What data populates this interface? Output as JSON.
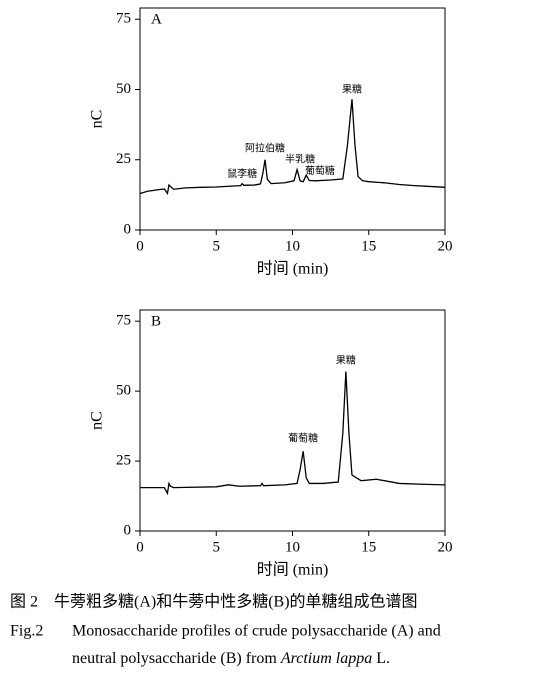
{
  "chart_data": [
    {
      "type": "line",
      "title": "A",
      "x_label": "时间 (min)",
      "y_label": "nC",
      "xlim": [
        0,
        20
      ],
      "ylim": [
        0,
        79
      ],
      "xticks": [
        0,
        5,
        10,
        15,
        20
      ],
      "yticks": [
        0,
        25,
        50,
        75
      ],
      "color": "#000000",
      "x": [
        0,
        0.5,
        1.0,
        1.6,
        1.8,
        1.9,
        2.0,
        2.2,
        3.0,
        4.0,
        5.0,
        6.0,
        6.6,
        6.7,
        6.8,
        7.5,
        7.9,
        8.05,
        8.2,
        8.35,
        8.6,
        9.5,
        10.1,
        10.3,
        10.5,
        10.7,
        10.9,
        11.1,
        11.5,
        12.5,
        13.3,
        13.6,
        13.9,
        14.1,
        14.3,
        14.6,
        15.0,
        16.0,
        17.0,
        18.0,
        19.0,
        20.0
      ],
      "values": [
        13,
        13.8,
        14.2,
        14.6,
        13,
        16,
        15.5,
        14.5,
        15,
        15.2,
        15.3,
        15.6,
        15.8,
        16.5,
        15.9,
        16,
        16.4,
        20,
        25,
        18,
        16.5,
        16.8,
        17.5,
        21.5,
        17.5,
        17.2,
        19.5,
        17.6,
        17.5,
        17.8,
        18.2,
        30,
        46.5,
        30,
        19,
        17.5,
        17.2,
        16.8,
        16.2,
        15.8,
        15.5,
        15.2
      ],
      "annotations": [
        "鼠李糖",
        "阿拉伯糖",
        "半乳糖",
        "葡萄糖",
        "果糖"
      ]
    },
    {
      "type": "line",
      "title": "B",
      "x_label": "时间 (min)",
      "y_label": "nC",
      "xlim": [
        0,
        20
      ],
      "ylim": [
        0,
        79
      ],
      "xticks": [
        0,
        5,
        10,
        15,
        20
      ],
      "yticks": [
        0,
        25,
        50,
        75
      ],
      "color": "#000000",
      "x": [
        0,
        1.0,
        1.6,
        1.8,
        1.9,
        2.0,
        2.2,
        3.0,
        5.0,
        5.8,
        6.5,
        7.9,
        8.0,
        8.1,
        9.5,
        10.3,
        10.5,
        10.7,
        10.9,
        11.1,
        12.0,
        13.0,
        13.3,
        13.5,
        13.7,
        13.9,
        14.5,
        15.5,
        17.0,
        18.5,
        20.0
      ],
      "values": [
        15.5,
        15.5,
        15.5,
        13.5,
        17,
        16,
        15.5,
        15.6,
        15.8,
        16.5,
        16,
        16.2,
        17,
        16.2,
        16.5,
        17,
        22,
        28.5,
        19,
        17,
        17,
        17.5,
        35,
        57,
        35,
        20,
        18,
        18.5,
        17,
        16.7,
        16.5
      ],
      "annotations": [
        "葡萄糖",
        "果糖"
      ]
    }
  ],
  "caption": {
    "cn": "图 2　牛蒡粗多糖(A)和牛蒡中性多糖(B)的单糖组成色谱图",
    "en_label": "Fig.2",
    "en_line1": "Monosaccharide profiles of crude polysaccharide (A) and",
    "en_line2_start": "neutral polysaccharide (B) from",
    "en_line2_italic": "Arctium lappa",
    "en_line2_end": "L."
  }
}
